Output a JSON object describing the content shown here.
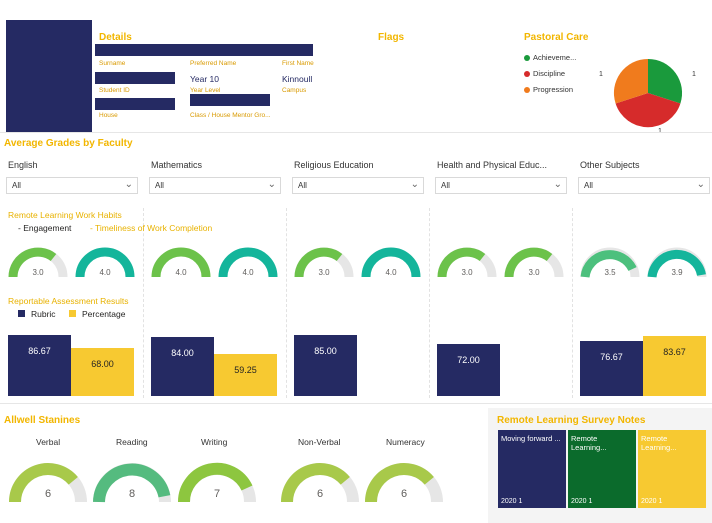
{
  "details": {
    "title": "Details",
    "surname_label": "Surname",
    "preferred_name_label": "Preferred Name",
    "first_name_label": "First Name",
    "year_level_value": "Year 10",
    "campus_value": "Kinnoull",
    "student_id_label": "Student ID",
    "year_level_label": "Year Level",
    "campus_label": "Campus",
    "house_label": "House",
    "class_label": "Class / House Mentor Gro..."
  },
  "flags": {
    "title": "Flags"
  },
  "pastoral": {
    "title": "Pastoral Care",
    "legend": [
      {
        "label": "Achieveme...",
        "color": "#1a9a3c"
      },
      {
        "label": "Discipline",
        "color": "#d62b2b"
      },
      {
        "label": "Progression",
        "color": "#f07b1d"
      }
    ],
    "pie_values": [
      1,
      1,
      1
    ],
    "pie_labels": [
      "1",
      "1",
      "1"
    ]
  },
  "grades": {
    "title": "Average Grades by Faculty",
    "filters": [
      {
        "label": "English",
        "value": "All"
      },
      {
        "label": "Mathematics",
        "value": "All"
      },
      {
        "label": "Religious Education",
        "value": "All"
      },
      {
        "label": "Health and Physical Educ...",
        "value": "All"
      },
      {
        "label": "Other Subjects",
        "value": "All"
      }
    ]
  },
  "habits": {
    "title": "Remote Learning Work Habits",
    "legend_engagement": "Engagement",
    "legend_timeliness": "Timeliness of Work Completion",
    "engagement": [
      "3.0",
      "4.0",
      "3.0",
      "3.0",
      "3.5"
    ],
    "timeliness": [
      "4.0",
      "4.0",
      "4.0",
      "3.0",
      "3.9"
    ],
    "engagement_color": "#6cc24a",
    "timeliness_color": "#14b59b"
  },
  "assessment": {
    "title": "Reportable Assessment Results",
    "legend_rubric": "Rubric",
    "legend_percentage": "Percentage",
    "groups": [
      {
        "rubric": 86.67,
        "rubric_label": "86.67",
        "percentage": 68.0,
        "percentage_label": "68.00"
      },
      {
        "rubric": 84.0,
        "rubric_label": "84.00",
        "percentage": 59.25,
        "percentage_label": "59.25"
      },
      {
        "rubric": 85.0,
        "rubric_label": "85.00",
        "percentage": null,
        "percentage_label": ""
      },
      {
        "rubric": 72.0,
        "rubric_label": "72.00",
        "percentage": null,
        "percentage_label": ""
      },
      {
        "rubric": 76.67,
        "rubric_label": "76.67",
        "percentage": 83.67,
        "percentage_label": "83.67"
      }
    ]
  },
  "stanines": {
    "title": "Allwell Stanines",
    "items": [
      {
        "label": "Verbal",
        "value": "6",
        "color": "#a8c94a"
      },
      {
        "label": "Reading",
        "value": "8",
        "color": "#55bb7f"
      },
      {
        "label": "Writing",
        "value": "7",
        "color": "#8dc63f"
      },
      {
        "label": "Non-Verbal",
        "value": "6",
        "color": "#a8c94a"
      },
      {
        "label": "Numeracy",
        "value": "6",
        "color": "#a8c94a"
      }
    ]
  },
  "survey": {
    "title": "Remote Learning Survey Notes",
    "tiles": [
      {
        "text": "Moving forward ...",
        "foot": "2020 1",
        "color": "#252a63"
      },
      {
        "text": "Remote Learning...",
        "foot": "2020 1",
        "color": "#0b6b2c"
      },
      {
        "text": "Remote Learning...",
        "foot": "2020 1",
        "color": "#f7c931"
      }
    ]
  }
}
